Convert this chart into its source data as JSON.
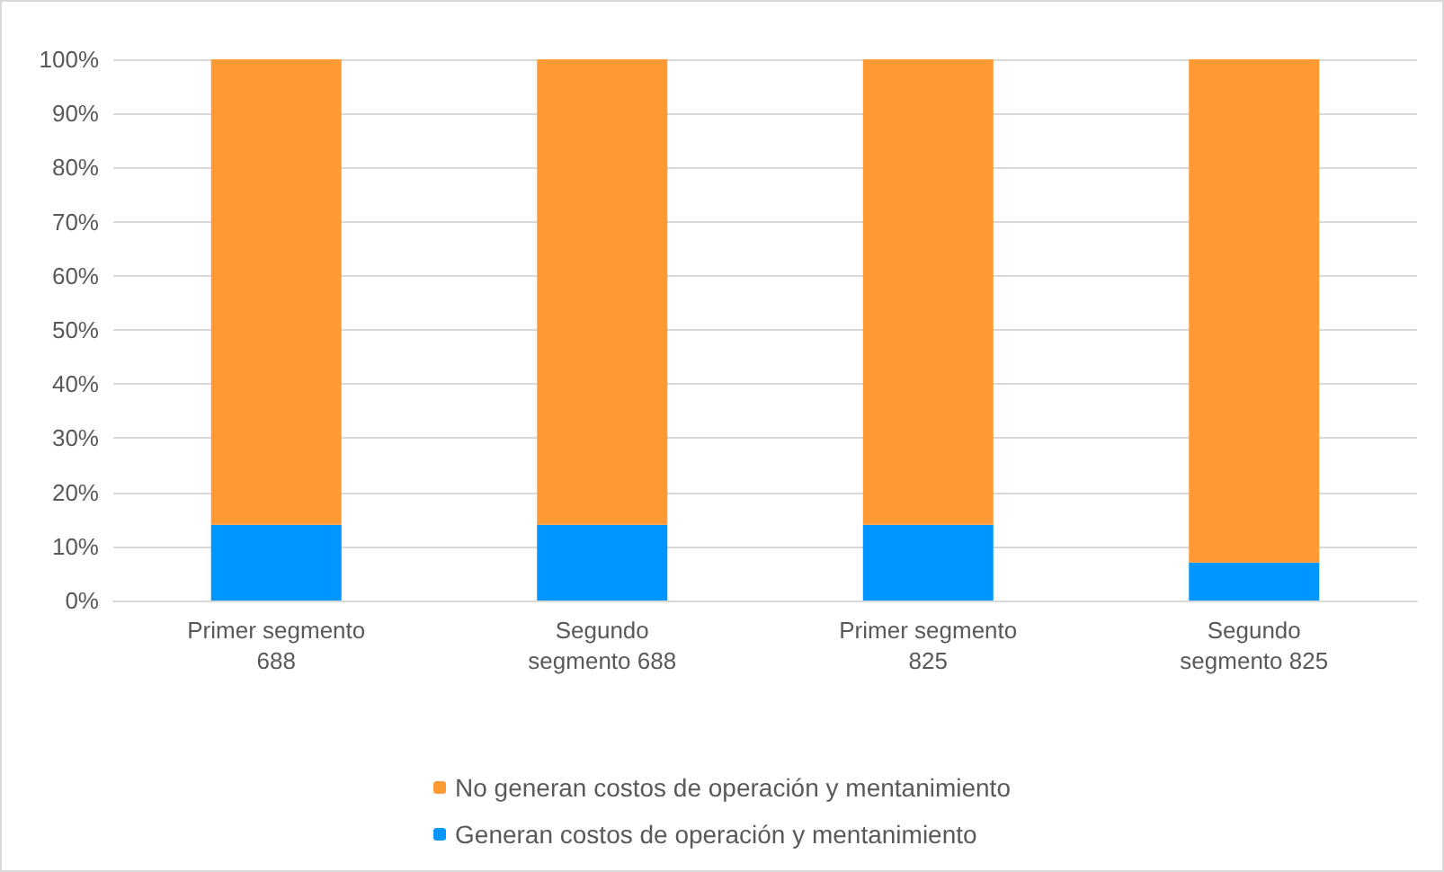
{
  "chart_data": {
    "type": "bar",
    "stacked": true,
    "categories": [
      "Primer segmento\n688",
      "Segundo\nsegmento 688",
      "Primer segmento\n825",
      "Segundo\nsegmento 825"
    ],
    "series": [
      {
        "name": "Generan costos de operación y mentanimiento",
        "color": "#0096ff",
        "values": [
          14,
          14,
          14,
          7
        ]
      },
      {
        "name": "No generan costos de operación y mentanimiento",
        "color": "#ff9933",
        "values": [
          86,
          86,
          86,
          93
        ]
      }
    ],
    "ylim": [
      0,
      100
    ],
    "yticks": [
      {
        "value": 0,
        "label": "0%"
      },
      {
        "value": 10,
        "label": "10%"
      },
      {
        "value": 20,
        "label": "20%"
      },
      {
        "value": 30,
        "label": "30%"
      },
      {
        "value": 40,
        "label": "40%"
      },
      {
        "value": 50,
        "label": "50%"
      },
      {
        "value": 60,
        "label": "60%"
      },
      {
        "value": 70,
        "label": "70%"
      },
      {
        "value": 80,
        "label": "80%"
      },
      {
        "value": 90,
        "label": "90%"
      },
      {
        "value": 100,
        "label": "100%"
      }
    ],
    "grid": "y",
    "legend": "bottom"
  }
}
